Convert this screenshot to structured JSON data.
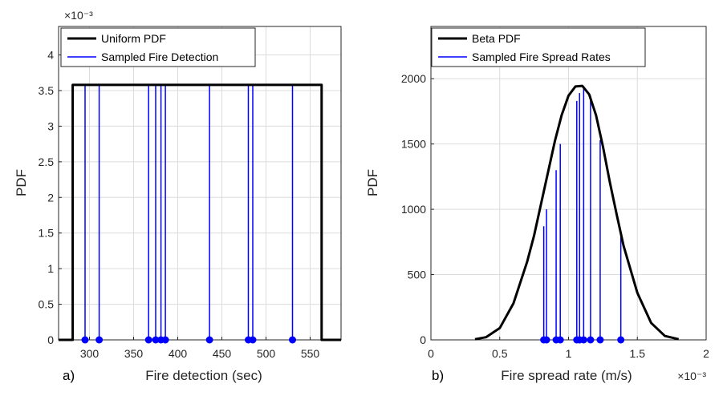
{
  "chart_data": [
    {
      "type": "line",
      "panel_label": "a)",
      "xlabel": "Fire detection (sec)",
      "ylabel": "PDF",
      "xlim": [
        265,
        585
      ],
      "ylim": [
        0,
        0.0044
      ],
      "xticks": [
        "300",
        "350",
        "400",
        "450",
        "500",
        "550"
      ],
      "yticks": [
        "0",
        "0.5",
        "1",
        "1.5",
        "2",
        "2.5",
        "3",
        "3.5",
        "4"
      ],
      "y_exponent_label": "×10⁻³",
      "grid": true,
      "legend_position": "top-right",
      "series": [
        {
          "name": "Uniform PDF",
          "color": "#000000",
          "x": [
            265,
            281,
            281,
            563,
            563,
            585
          ],
          "y": [
            0,
            0,
            0.00358,
            0.00358,
            0,
            0
          ]
        },
        {
          "name": "Sampled Fire Detection",
          "color": "#0000ff",
          "stem_top": 0.00358,
          "samples": [
            295,
            311,
            367,
            375,
            381,
            386,
            436,
            480,
            485,
            530
          ]
        }
      ]
    },
    {
      "type": "line",
      "panel_label": "b)",
      "xlabel": "Fire spread rate (m/s)",
      "ylabel": "PDF",
      "xlim": [
        0,
        0.002
      ],
      "ylim": [
        0,
        2400
      ],
      "xticks": [
        "0",
        "0.5",
        "1",
        "1.5",
        "2"
      ],
      "yticks": [
        "0",
        "500",
        "1000",
        "1500",
        "2000"
      ],
      "x_exponent_label": "×10⁻³",
      "grid": true,
      "legend_position": "top-right",
      "series": [
        {
          "name": "Beta PDF",
          "color": "#000000",
          "x": [
            0.00032,
            0.0004,
            0.0005,
            0.0006,
            0.0007,
            0.00075,
            0.0008,
            0.00085,
            0.0009,
            0.00095,
            0.001,
            0.00105,
            0.0011,
            0.00115,
            0.0012,
            0.00125,
            0.0013,
            0.00135,
            0.0014,
            0.0015,
            0.0016,
            0.0017,
            0.0018
          ],
          "y": [
            5,
            20,
            90,
            280,
            600,
            800,
            1040,
            1280,
            1520,
            1720,
            1870,
            1940,
            1945,
            1880,
            1720,
            1480,
            1210,
            960,
            720,
            360,
            130,
            30,
            5
          ]
        },
        {
          "name": "Sampled Fire Spread Rates",
          "color": "#0000ff",
          "samples": [
            0.00082,
            0.00084,
            0.00091,
            0.00094,
            0.00106,
            0.00108,
            0.00111,
            0.00116,
            0.00123,
            0.00138
          ],
          "stem_tops": [
            870,
            1000,
            1300,
            1500,
            1830,
            1890,
            1940,
            1870,
            1530,
            800
          ]
        }
      ]
    }
  ]
}
